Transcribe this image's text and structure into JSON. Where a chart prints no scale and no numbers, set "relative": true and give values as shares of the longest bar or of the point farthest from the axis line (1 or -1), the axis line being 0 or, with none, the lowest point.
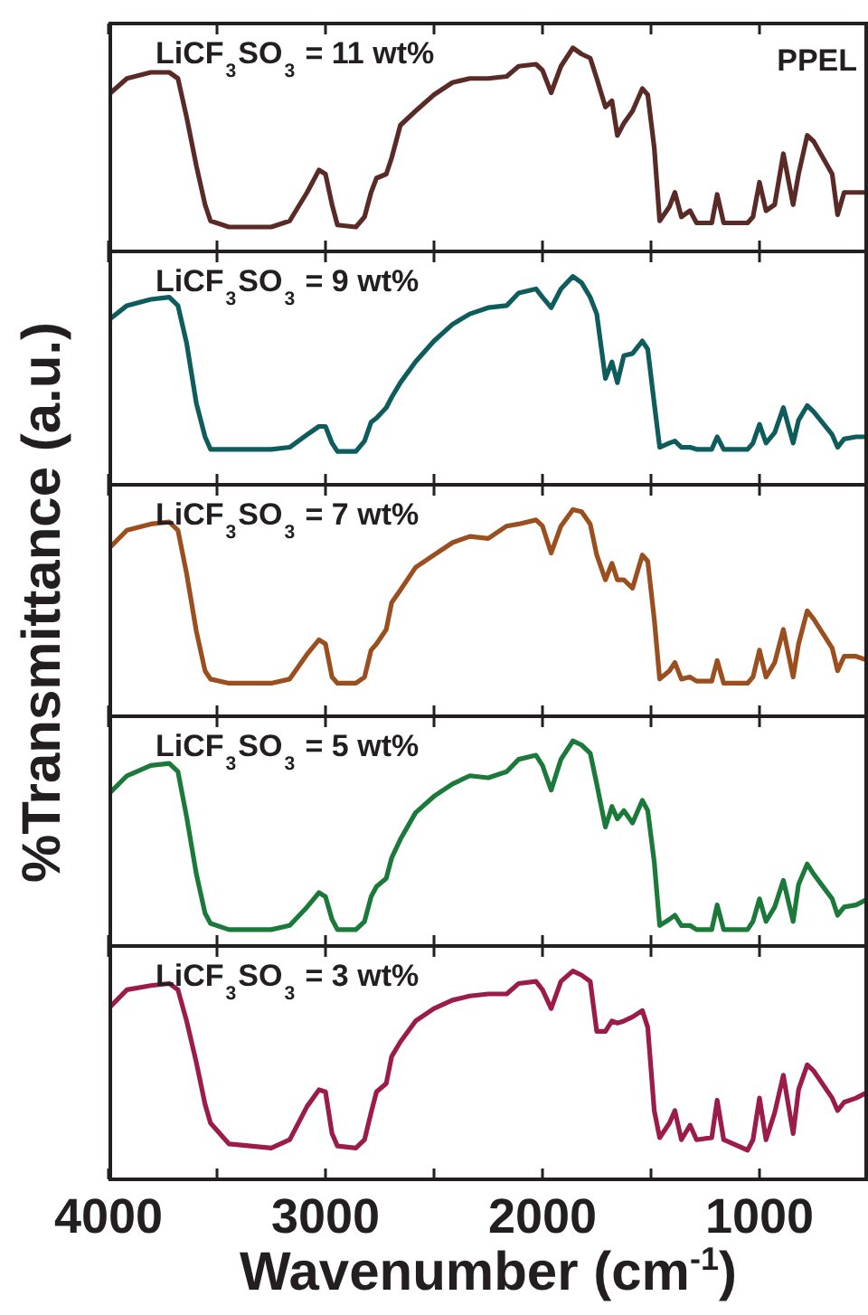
{
  "chart_data": [
    {
      "type": "line",
      "relative": true,
      "marker": "none",
      "tick_labels": false,
      "annotations": [
        "LiCF$_{3}$SO$_{3}$ = 11 wt%",
        "PPEL"
      ],
      "xlim": [
        4000,
        500
      ],
      "xticks": [
        {
          "value": 4000,
          "label": null
        },
        {
          "value": 3500,
          "label": null
        },
        {
          "value": 3000,
          "label": null
        },
        {
          "value": 2500,
          "label": null
        },
        {
          "value": 2000,
          "label": null
        },
        {
          "value": 1500,
          "label": null
        },
        {
          "value": 1000,
          "label": null
        }
      ],
      "x": [
        4000,
        3915,
        3805,
        3720,
        3680,
        3640,
        3595,
        3555,
        3530,
        3445,
        3250,
        3165,
        3085,
        3030,
        3000,
        2970,
        2945,
        2860,
        2820,
        2790,
        2765,
        2720,
        2695,
        2655,
        2585,
        2500,
        2415,
        2335,
        2250,
        2165,
        2110,
        2030,
        2000,
        1960,
        1915,
        1860,
        1820,
        1780,
        1750,
        1710,
        1680,
        1655,
        1625,
        1585,
        1540,
        1515,
        1485,
        1460,
        1415,
        1390,
        1360,
        1320,
        1290,
        1220,
        1195,
        1165,
        1055,
        1030,
        1000,
        970,
        930,
        890,
        845,
        820,
        780,
        750,
        665,
        640,
        610,
        555,
        500
      ],
      "series": [
        {
          "color": "#5a2a27",
          "values": [
            0.77,
            0.85,
            0.88,
            0.88,
            0.85,
            0.66,
            0.42,
            0.23,
            0.15,
            0.12,
            0.12,
            0.15,
            0.29,
            0.4,
            0.38,
            0.23,
            0.13,
            0.12,
            0.17,
            0.29,
            0.36,
            0.38,
            0.46,
            0.62,
            0.69,
            0.77,
            0.83,
            0.85,
            0.85,
            0.86,
            0.91,
            0.92,
            0.89,
            0.78,
            0.91,
            1.0,
            0.97,
            0.95,
            0.85,
            0.71,
            0.74,
            0.57,
            0.63,
            0.69,
            0.8,
            0.77,
            0.51,
            0.15,
            0.22,
            0.29,
            0.17,
            0.2,
            0.14,
            0.14,
            0.28,
            0.14,
            0.14,
            0.17,
            0.34,
            0.2,
            0.23,
            0.48,
            0.23,
            0.38,
            0.57,
            0.54,
            0.38,
            0.18,
            0.29,
            0.29,
            0.29
          ]
        }
      ]
    },
    {
      "type": "line",
      "relative": true,
      "marker": "none",
      "tick_labels": false,
      "annotations": [
        "LiCF$_{3}$SO$_{3}$ = 9 wt%"
      ],
      "xlim": [
        4000,
        500
      ],
      "xticks": [
        {
          "value": 4000,
          "label": null
        },
        {
          "value": 3500,
          "label": null
        },
        {
          "value": 3000,
          "label": null
        },
        {
          "value": 2500,
          "label": null
        },
        {
          "value": 2000,
          "label": null
        },
        {
          "value": 1500,
          "label": null
        },
        {
          "value": 1000,
          "label": null
        }
      ],
      "x": [
        4000,
        3915,
        3805,
        3720,
        3680,
        3640,
        3595,
        3555,
        3530,
        3445,
        3250,
        3165,
        3085,
        3030,
        3000,
        2970,
        2945,
        2860,
        2820,
        2790,
        2765,
        2720,
        2695,
        2655,
        2585,
        2500,
        2415,
        2335,
        2250,
        2165,
        2110,
        2030,
        2000,
        1960,
        1915,
        1860,
        1820,
        1780,
        1750,
        1710,
        1680,
        1655,
        1625,
        1585,
        1540,
        1515,
        1485,
        1460,
        1415,
        1390,
        1360,
        1320,
        1290,
        1220,
        1195,
        1165,
        1055,
        1030,
        1000,
        970,
        930,
        890,
        845,
        820,
        780,
        750,
        665,
        640,
        610,
        555,
        500
      ],
      "series": [
        {
          "color": "#0e5c5c",
          "values": [
            0.79,
            0.86,
            0.89,
            0.9,
            0.86,
            0.68,
            0.39,
            0.23,
            0.17,
            0.17,
            0.17,
            0.18,
            0.24,
            0.28,
            0.28,
            0.2,
            0.16,
            0.16,
            0.21,
            0.3,
            0.32,
            0.37,
            0.42,
            0.49,
            0.59,
            0.69,
            0.77,
            0.82,
            0.85,
            0.86,
            0.92,
            0.94,
            0.9,
            0.85,
            0.94,
            1.0,
            0.97,
            0.9,
            0.82,
            0.51,
            0.59,
            0.49,
            0.62,
            0.63,
            0.69,
            0.65,
            0.39,
            0.18,
            0.2,
            0.21,
            0.18,
            0.18,
            0.17,
            0.17,
            0.23,
            0.17,
            0.17,
            0.2,
            0.29,
            0.2,
            0.25,
            0.37,
            0.2,
            0.31,
            0.38,
            0.35,
            0.24,
            0.18,
            0.22,
            0.23,
            0.23
          ]
        }
      ]
    },
    {
      "type": "line",
      "relative": true,
      "marker": "none",
      "tick_labels": false,
      "annotations": [
        "LiCF$_{3}$SO$_{3}$ = 7 wt%"
      ],
      "ylabel": "%Transmittance (a.u.)",
      "xlim": [
        4000,
        500
      ],
      "xticks": [
        {
          "value": 4000,
          "label": null
        },
        {
          "value": 3500,
          "label": null
        },
        {
          "value": 3000,
          "label": null
        },
        {
          "value": 2500,
          "label": null
        },
        {
          "value": 2000,
          "label": null
        },
        {
          "value": 1500,
          "label": null
        },
        {
          "value": 1000,
          "label": null
        }
      ],
      "x": [
        4000,
        3915,
        3805,
        3720,
        3680,
        3640,
        3595,
        3555,
        3530,
        3445,
        3250,
        3165,
        3085,
        3030,
        3000,
        2970,
        2945,
        2860,
        2820,
        2790,
        2765,
        2720,
        2695,
        2655,
        2585,
        2500,
        2415,
        2335,
        2250,
        2165,
        2110,
        2030,
        2000,
        1960,
        1915,
        1860,
        1820,
        1780,
        1750,
        1710,
        1680,
        1655,
        1625,
        1585,
        1540,
        1515,
        1485,
        1460,
        1415,
        1390,
        1360,
        1320,
        1290,
        1220,
        1195,
        1165,
        1055,
        1030,
        1000,
        970,
        930,
        890,
        845,
        820,
        780,
        750,
        665,
        640,
        610,
        555,
        500
      ],
      "series": [
        {
          "color": "#9c4f1e",
          "values": [
            0.81,
            0.9,
            0.93,
            0.94,
            0.9,
            0.69,
            0.41,
            0.22,
            0.18,
            0.16,
            0.16,
            0.18,
            0.3,
            0.37,
            0.35,
            0.19,
            0.16,
            0.16,
            0.19,
            0.32,
            0.35,
            0.42,
            0.55,
            0.61,
            0.72,
            0.78,
            0.84,
            0.87,
            0.86,
            0.92,
            0.93,
            0.95,
            0.92,
            0.79,
            0.92,
            1.0,
            0.99,
            0.93,
            0.78,
            0.66,
            0.74,
            0.66,
            0.66,
            0.62,
            0.78,
            0.75,
            0.47,
            0.18,
            0.22,
            0.26,
            0.18,
            0.19,
            0.17,
            0.17,
            0.27,
            0.16,
            0.16,
            0.19,
            0.32,
            0.19,
            0.26,
            0.42,
            0.19,
            0.35,
            0.51,
            0.47,
            0.33,
            0.22,
            0.29,
            0.29,
            0.27
          ]
        }
      ]
    },
    {
      "type": "line",
      "relative": true,
      "marker": "none",
      "tick_labels": false,
      "annotations": [
        "LiCF$_{3}$SO$_{3}$ = 5 wt%"
      ],
      "xlim": [
        4000,
        500
      ],
      "xticks": [
        {
          "value": 4000,
          "label": null
        },
        {
          "value": 3500,
          "label": null
        },
        {
          "value": 3000,
          "label": null
        },
        {
          "value": 2500,
          "label": null
        },
        {
          "value": 2000,
          "label": null
        },
        {
          "value": 1500,
          "label": null
        },
        {
          "value": 1000,
          "label": null
        }
      ],
      "x": [
        4000,
        3915,
        3805,
        3720,
        3680,
        3640,
        3595,
        3555,
        3530,
        3445,
        3250,
        3165,
        3085,
        3030,
        3000,
        2970,
        2945,
        2860,
        2820,
        2790,
        2765,
        2720,
        2695,
        2655,
        2585,
        2500,
        2415,
        2335,
        2250,
        2165,
        2110,
        2030,
        2000,
        1960,
        1915,
        1860,
        1820,
        1780,
        1750,
        1710,
        1680,
        1655,
        1625,
        1585,
        1540,
        1515,
        1485,
        1460,
        1415,
        1390,
        1360,
        1320,
        1290,
        1220,
        1195,
        1165,
        1055,
        1030,
        1000,
        970,
        930,
        890,
        845,
        820,
        780,
        750,
        665,
        640,
        610,
        555,
        500
      ],
      "series": [
        {
          "color": "#1b7a3a",
          "values": [
            0.74,
            0.83,
            0.88,
            0.89,
            0.85,
            0.63,
            0.35,
            0.16,
            0.11,
            0.08,
            0.08,
            0.1,
            0.19,
            0.26,
            0.24,
            0.13,
            0.08,
            0.08,
            0.12,
            0.24,
            0.29,
            0.33,
            0.43,
            0.52,
            0.65,
            0.73,
            0.79,
            0.83,
            0.82,
            0.85,
            0.91,
            0.93,
            0.88,
            0.76,
            0.91,
            1.0,
            0.98,
            0.94,
            0.79,
            0.58,
            0.68,
            0.62,
            0.66,
            0.6,
            0.71,
            0.66,
            0.41,
            0.1,
            0.13,
            0.15,
            0.1,
            0.1,
            0.08,
            0.08,
            0.2,
            0.08,
            0.08,
            0.12,
            0.23,
            0.12,
            0.19,
            0.32,
            0.12,
            0.3,
            0.4,
            0.35,
            0.23,
            0.15,
            0.19,
            0.2,
            0.23
          ]
        }
      ]
    },
    {
      "type": "line",
      "relative": true,
      "marker": "none",
      "tick_labels": "x",
      "annotations": [
        "LiCF$_{3}$SO$_{3}$ = 3 wt%"
      ],
      "xlabel": "Wavenumber (cm$^{-1}$)",
      "xlim": [
        4000,
        500
      ],
      "xticks": [
        4000,
        {
          "value": 3500,
          "label": null
        },
        3000,
        {
          "value": 2500,
          "label": null
        },
        2000,
        {
          "value": 1500,
          "label": null
        },
        1000
      ],
      "x": [
        4000,
        3915,
        3805,
        3720,
        3680,
        3640,
        3595,
        3555,
        3530,
        3445,
        3250,
        3165,
        3085,
        3030,
        3000,
        2970,
        2945,
        2860,
        2820,
        2790,
        2765,
        2720,
        2695,
        2655,
        2585,
        2500,
        2415,
        2335,
        2250,
        2165,
        2110,
        2030,
        2000,
        1960,
        1915,
        1860,
        1820,
        1780,
        1750,
        1710,
        1680,
        1655,
        1625,
        1585,
        1540,
        1515,
        1485,
        1460,
        1415,
        1390,
        1360,
        1320,
        1290,
        1220,
        1195,
        1165,
        1055,
        1030,
        1000,
        970,
        930,
        890,
        845,
        820,
        780,
        750,
        665,
        640,
        610,
        555,
        500
      ],
      "series": [
        {
          "color": "#9b1b4b",
          "values": [
            0.82,
            0.91,
            0.93,
            0.94,
            0.91,
            0.76,
            0.56,
            0.36,
            0.27,
            0.17,
            0.15,
            0.19,
            0.35,
            0.43,
            0.42,
            0.22,
            0.16,
            0.15,
            0.19,
            0.32,
            0.42,
            0.46,
            0.59,
            0.66,
            0.76,
            0.82,
            0.86,
            0.88,
            0.89,
            0.89,
            0.94,
            0.95,
            0.91,
            0.82,
            0.95,
            1.0,
            0.98,
            0.95,
            0.71,
            0.71,
            0.76,
            0.75,
            0.76,
            0.78,
            0.81,
            0.73,
            0.33,
            0.2,
            0.27,
            0.33,
            0.19,
            0.26,
            0.19,
            0.2,
            0.38,
            0.19,
            0.14,
            0.19,
            0.39,
            0.19,
            0.32,
            0.5,
            0.22,
            0.43,
            0.55,
            0.52,
            0.39,
            0.33,
            0.37,
            0.39,
            0.42
          ]
        }
      ]
    }
  ]
}
